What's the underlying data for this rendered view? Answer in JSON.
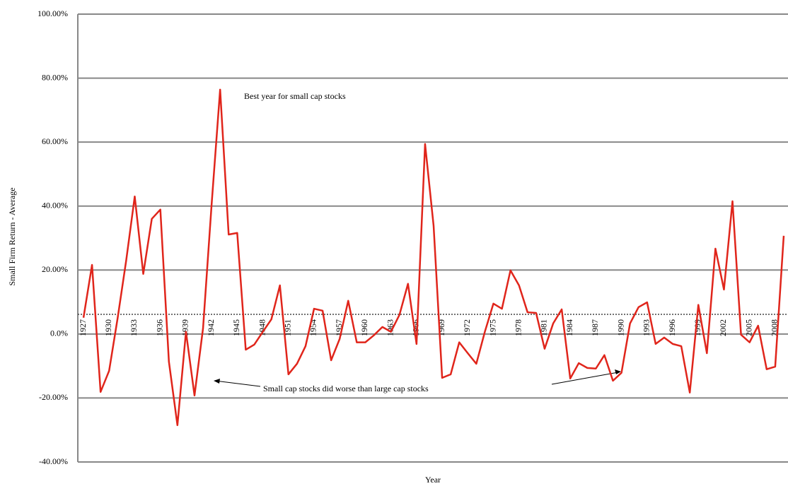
{
  "chart_data": {
    "type": "line",
    "y_axis_label": "Small Firm Return - Average",
    "x_axis_label": "Year",
    "annotations": [
      "Best year for small cap stocks",
      "Small cap stocks did worse than large cap stocks"
    ],
    "categories": [
      "1927",
      null,
      null,
      "1930",
      null,
      null,
      "1933",
      null,
      null,
      "1936",
      null,
      null,
      "1939",
      null,
      null,
      "1942",
      null,
      null,
      "1945",
      null,
      null,
      "1948",
      null,
      null,
      "1951",
      null,
      null,
      "1954",
      null,
      null,
      "1957",
      null,
      null,
      "1960",
      null,
      null,
      "1963",
      null,
      null,
      "1966",
      null,
      null,
      "1969",
      null,
      null,
      "1972",
      null,
      null,
      "1975",
      null,
      null,
      "1978",
      null,
      null,
      "1981",
      null,
      null,
      "1984",
      null,
      null,
      "1987",
      null,
      null,
      "1990",
      null,
      null,
      "1993",
      null,
      null,
      "1996",
      null,
      null,
      "1999",
      null,
      null,
      "2002",
      null,
      null,
      "2005",
      null,
      null,
      "2008",
      null
    ],
    "series": [
      {
        "color": "#e0251b",
        "values": [
          5.1,
          21.6,
          -18.1,
          -11.5,
          5.0,
          23.0,
          43.0,
          18.8,
          36.0,
          38.9,
          -8.6,
          -28.5,
          0.7,
          -19.2,
          1.8,
          40.4,
          76.4,
          31.1,
          31.6,
          -4.9,
          -3.3,
          0.7,
          4.6,
          15.2,
          -12.6,
          -9.3,
          -3.8,
          7.9,
          7.3,
          -8.2,
          -1.5,
          10.4,
          -2.6,
          -2.6,
          -0.4,
          2.2,
          0.7,
          6.0,
          15.7,
          -3.1,
          59.4,
          33.8,
          -13.7,
          -12.6,
          -2.6,
          -6.0,
          -9.3,
          0.7,
          9.5,
          7.9,
          19.9,
          15.2,
          6.8,
          6.6,
          -4.6,
          3.3,
          7.7,
          -13.9,
          -9.1,
          -10.6,
          -10.8,
          -6.6,
          -14.6,
          -12.1,
          3.3,
          8.4,
          9.9,
          -3.1,
          -1.1,
          -3.1,
          -3.8,
          -18.3,
          9.1,
          -6.0,
          26.7,
          13.9,
          41.5,
          -0.2,
          -2.6,
          2.6,
          -11.0,
          -10.2,
          30.7
        ]
      }
    ],
    "ylim": [
      -40,
      100
    ],
    "yticks": [
      {
        "value": -40,
        "label": "-40.00%"
      },
      {
        "value": -20,
        "label": "-20.00%"
      },
      {
        "value": 0,
        "label": "0.0%"
      },
      {
        "value": 20,
        "label": "20.00%"
      },
      {
        "value": 40,
        "label": "40.00%"
      },
      {
        "value": 60,
        "label": "60.00%"
      },
      {
        "value": 80,
        "label": "80.00%"
      },
      {
        "value": 100,
        "label": "100.00%"
      }
    ],
    "grid": true
  }
}
